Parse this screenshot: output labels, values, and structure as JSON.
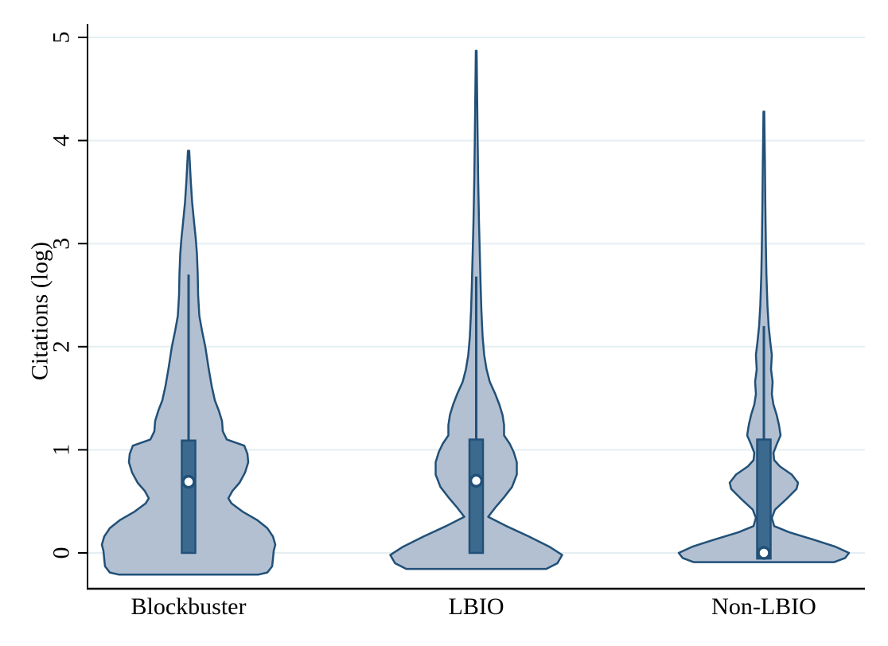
{
  "figure": {
    "background": "#ffffff"
  },
  "chart_data": {
    "type": "violin",
    "title": "",
    "ylabel": "Citations (log)",
    "xlabel": "",
    "categories": [
      "Blockbuster",
      "LBIO",
      "Non-LBIO"
    ],
    "yticks": [
      0,
      1,
      2,
      3,
      4,
      5
    ],
    "ylim": [
      -0.35,
      5.45
    ],
    "grid": "horizontal",
    "legend": "none",
    "colors": {
      "violin_fill": "#b3c0d1",
      "violin_stroke": "#215078",
      "box_fill": "#3c698e",
      "median_fill": "#ffffff",
      "gridline": "#e4eef3",
      "axis": "#000000",
      "background": "#ffffff"
    },
    "series": [
      {
        "name": "Blockbuster",
        "median": 0.69,
        "box_q1": 0.0,
        "box_q3": 1.09,
        "whisker_top": 2.7,
        "min": -0.21,
        "max": 3.9,
        "profile": [
          [
            -0.21,
            88
          ],
          [
            -0.19,
            99
          ],
          [
            -0.13,
            105
          ],
          [
            -0.06,
            106
          ],
          [
            0.02,
            107
          ],
          [
            0.08,
            109
          ],
          [
            0.16,
            106
          ],
          [
            0.24,
            99
          ],
          [
            0.32,
            86
          ],
          [
            0.4,
            68
          ],
          [
            0.48,
            54
          ],
          [
            0.53,
            50
          ],
          [
            0.6,
            55
          ],
          [
            0.68,
            64
          ],
          [
            0.78,
            71
          ],
          [
            0.88,
            75
          ],
          [
            0.96,
            74
          ],
          [
            1.04,
            70
          ],
          [
            1.1,
            48
          ],
          [
            1.18,
            43
          ],
          [
            1.28,
            42
          ],
          [
            1.38,
            38
          ],
          [
            1.48,
            33
          ],
          [
            1.62,
            29
          ],
          [
            1.8,
            25
          ],
          [
            2.0,
            21
          ],
          [
            2.15,
            17
          ],
          [
            2.3,
            13.5
          ],
          [
            2.5,
            12
          ],
          [
            2.7,
            11.5
          ],
          [
            2.9,
            10.5
          ],
          [
            3.05,
            9
          ],
          [
            3.2,
            7
          ],
          [
            3.4,
            4.5
          ],
          [
            3.6,
            2.8
          ],
          [
            3.75,
            1.8
          ],
          [
            3.9,
            0.8
          ]
        ]
      },
      {
        "name": "LBIO",
        "median": 0.7,
        "box_q1": 0.0,
        "box_q3": 1.1,
        "whisker_top": 2.68,
        "min": -0.155,
        "max": 4.87,
        "profile": [
          [
            -0.155,
            88
          ],
          [
            -0.1,
            102
          ],
          [
            -0.02,
            108
          ],
          [
            0.06,
            92
          ],
          [
            0.16,
            66
          ],
          [
            0.26,
            38
          ],
          [
            0.35,
            15
          ],
          [
            0.44,
            24
          ],
          [
            0.54,
            35
          ],
          [
            0.64,
            45
          ],
          [
            0.76,
            51
          ],
          [
            0.88,
            51
          ],
          [
            0.98,
            47
          ],
          [
            1.06,
            42
          ],
          [
            1.14,
            35
          ],
          [
            1.24,
            35
          ],
          [
            1.34,
            33
          ],
          [
            1.44,
            29
          ],
          [
            1.54,
            24
          ],
          [
            1.66,
            17
          ],
          [
            1.78,
            13
          ],
          [
            1.92,
            10
          ],
          [
            2.1,
            8
          ],
          [
            2.35,
            6.5
          ],
          [
            2.6,
            5.5
          ],
          [
            2.9,
            4.5
          ],
          [
            3.2,
            3.5
          ],
          [
            3.6,
            2.5
          ],
          [
            4.0,
            1.8
          ],
          [
            4.4,
            1.2
          ],
          [
            4.87,
            0.5
          ]
        ]
      },
      {
        "name": "Non-LBIO",
        "median": 0.0,
        "box_q1": -0.055,
        "box_q3": 1.1,
        "whisker_top": 2.2,
        "min": -0.09,
        "max": 4.28,
        "profile": [
          [
            -0.09,
            88
          ],
          [
            -0.05,
            102
          ],
          [
            0.0,
            107
          ],
          [
            0.06,
            90
          ],
          [
            0.13,
            62
          ],
          [
            0.2,
            32
          ],
          [
            0.26,
            13
          ],
          [
            0.34,
            10
          ],
          [
            0.42,
            14
          ],
          [
            0.52,
            28
          ],
          [
            0.62,
            41
          ],
          [
            0.68,
            43
          ],
          [
            0.76,
            35
          ],
          [
            0.84,
            20
          ],
          [
            0.9,
            13
          ],
          [
            0.97,
            12
          ],
          [
            1.05,
            16
          ],
          [
            1.14,
            21
          ],
          [
            1.24,
            19
          ],
          [
            1.34,
            16
          ],
          [
            1.44,
            12
          ],
          [
            1.54,
            10
          ],
          [
            1.66,
            11
          ],
          [
            1.78,
            9
          ],
          [
            1.92,
            10
          ],
          [
            2.05,
            8
          ],
          [
            2.2,
            6
          ],
          [
            2.4,
            4.5
          ],
          [
            2.7,
            3.2
          ],
          [
            3.0,
            2.5
          ],
          [
            3.4,
            1.8
          ],
          [
            3.8,
            1.3
          ],
          [
            4.28,
            0.5
          ]
        ]
      }
    ]
  }
}
